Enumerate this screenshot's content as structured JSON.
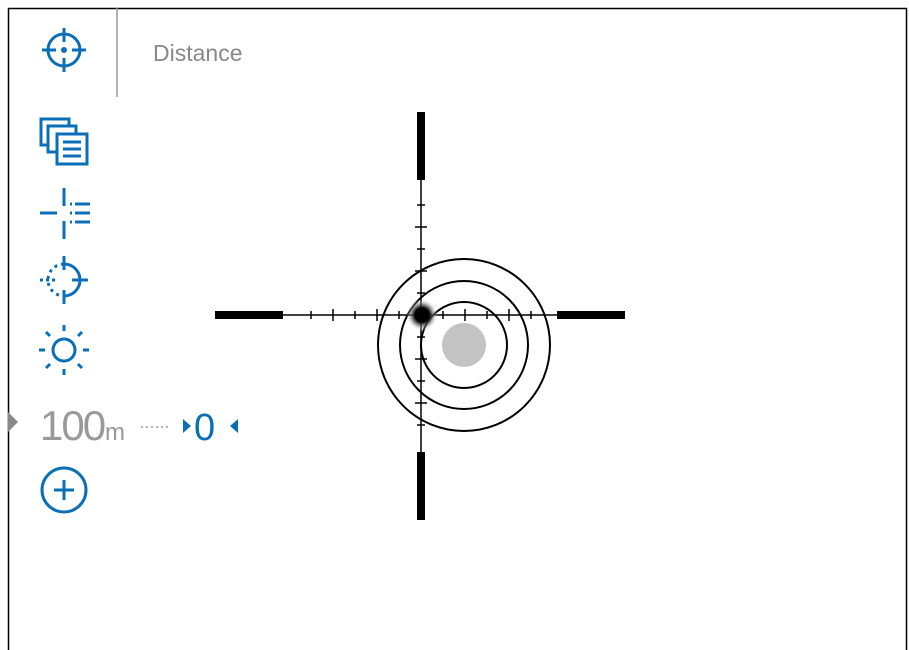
{
  "header": {
    "title": "Distance"
  },
  "zeroing": {
    "distance": "100",
    "unit": "m",
    "selected": "0"
  }
}
